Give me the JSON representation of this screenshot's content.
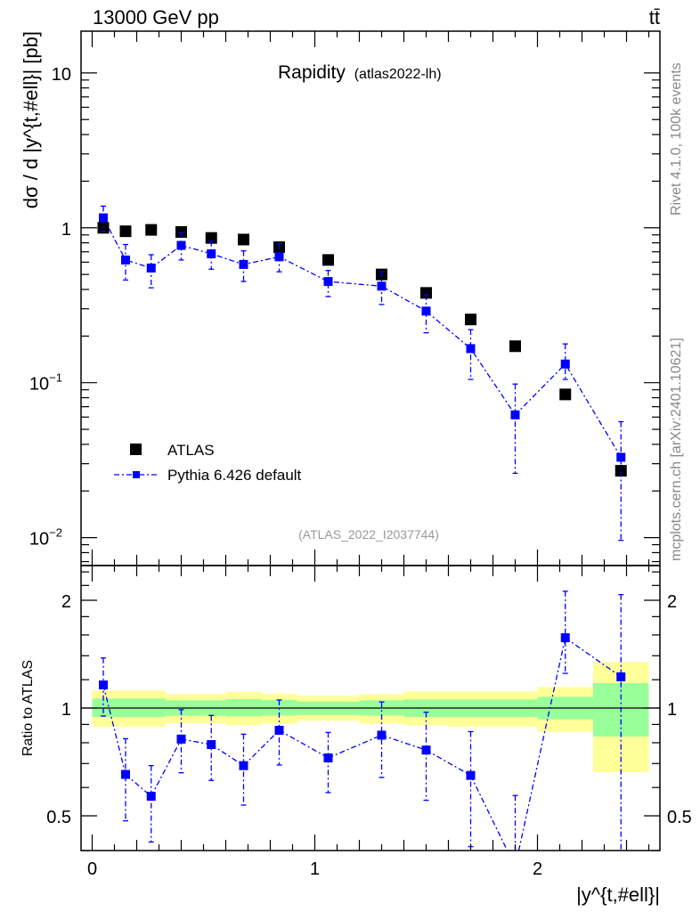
{
  "header": {
    "energy_label": "13000 GeV pp",
    "process_label": "tt̄",
    "title": "Rapidity",
    "title_sub": "(atlas2022-lh)",
    "analysis_id": "(ATLAS_2022_I2037744)",
    "rivet_label": "Rivet 4.1.0,  100k events",
    "source_label": "mcplots.cern.ch [arXiv:2401.10621]"
  },
  "chart_data": {
    "type": "scatter",
    "xlabel": "|y^{t,#ell}|",
    "ylabel": "dσ / d |y^{t,#ell}| [pb]",
    "ratio_ylabel": "Ratio to ATLAS",
    "xlim": [
      -0.05,
      2.55
    ],
    "ylim": [
      0.0066,
      18.6
    ],
    "ratio_ylim": [
      0.4,
      2.5
    ],
    "yscale": "log",
    "ratio_yscale": "log",
    "x_ticks": [
      {
        "v": 0,
        "label": "0"
      },
      {
        "v": 1,
        "label": "1"
      },
      {
        "v": 2,
        "label": "2"
      }
    ],
    "y_ticks": [
      {
        "v": 0.01,
        "label": "10",
        "exp": "−2"
      },
      {
        "v": 0.1,
        "label": "10",
        "exp": "−1"
      },
      {
        "v": 1,
        "label": "1",
        "exp": ""
      },
      {
        "v": 10,
        "label": "10",
        "exp": ""
      }
    ],
    "ratio_ticks": [
      {
        "v": 0.5,
        "label": "0.5"
      },
      {
        "v": 1,
        "label": "1"
      },
      {
        "v": 2,
        "label": "2"
      }
    ],
    "legend": {
      "placement": "bottom-left",
      "entries": [
        "ATLAS",
        "Pythia 6.426 default"
      ]
    },
    "x": [
      0.05,
      0.15,
      0.265,
      0.4,
      0.535,
      0.68,
      0.84,
      1.06,
      1.3,
      1.5,
      1.7,
      1.9,
      2.125,
      2.375
    ],
    "series": [
      {
        "name": "ATLAS",
        "color": "#000000",
        "values": [
          1.0,
          0.95,
          0.97,
          0.94,
          0.86,
          0.84,
          0.75,
          0.62,
          0.5,
          0.38,
          0.256,
          0.172,
          0.084,
          0.027
        ]
      },
      {
        "name": "Pythia 6.426 default",
        "color": "#0000ff",
        "values": [
          1.16,
          0.62,
          0.55,
          0.77,
          0.68,
          0.58,
          0.65,
          0.45,
          0.42,
          0.29,
          0.166,
          0.062,
          0.132,
          0.033
        ],
        "err_low": [
          0.95,
          0.46,
          0.41,
          0.62,
          0.54,
          0.45,
          0.52,
          0.36,
          0.32,
          0.21,
          0.105,
          0.026,
          0.105,
          0.0096
        ],
        "err_high": [
          1.38,
          0.78,
          0.67,
          0.93,
          0.82,
          0.71,
          0.79,
          0.53,
          0.52,
          0.37,
          0.22,
          0.098,
          0.178,
          0.056
        ]
      }
    ],
    "ratio_bands": {
      "edges": [
        0,
        0.33,
        0.6,
        0.76,
        0.92,
        1.2,
        1.4,
        1.6,
        2.0,
        2.25,
        2.5
      ],
      "inner_low": [
        0.944,
        0.952,
        0.948,
        0.953,
        0.957,
        0.953,
        0.944,
        0.944,
        0.93,
        0.833
      ],
      "inner_high": [
        1.063,
        1.051,
        1.059,
        1.053,
        1.043,
        1.051,
        1.057,
        1.057,
        1.075,
        1.174
      ],
      "outer_low": [
        0.887,
        0.907,
        0.895,
        0.904,
        0.921,
        0.904,
        0.895,
        0.887,
        0.858,
        0.662
      ],
      "outer_high": [
        1.119,
        1.094,
        1.109,
        1.098,
        1.081,
        1.094,
        1.113,
        1.113,
        1.145,
        1.344
      ],
      "inner_color": "#99ff99",
      "outer_color": "#ffff99"
    }
  }
}
